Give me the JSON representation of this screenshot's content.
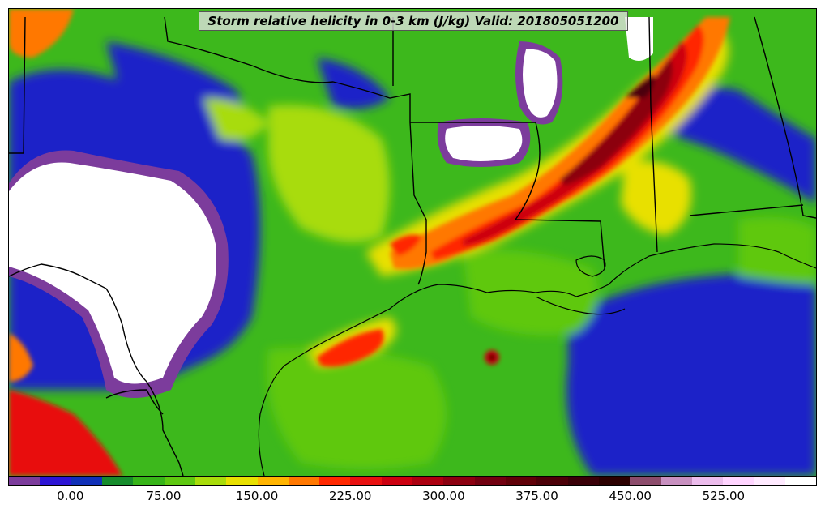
{
  "title": "Storm relative helicity in 0-3 km (J/kg) Valid: 201805051200",
  "colorbar": {
    "colors": [
      "#7c3c9c",
      "#2c14d4",
      "#1030b8",
      "#168c2c",
      "#36b418",
      "#5ec810",
      "#a8dc0a",
      "#e8e000",
      "#ffb400",
      "#ff7800",
      "#ff2800",
      "#e81010",
      "#cc0010",
      "#ac0010",
      "#8c0010",
      "#720010",
      "#600008",
      "#4c0008",
      "#3a0008",
      "#2c0000",
      "#8c4c6c",
      "#c890c0",
      "#ecbcec",
      "#ffd4ff",
      "#ffeaff"
    ],
    "tick_labels": [
      "0.00",
      "75.00",
      "150.00",
      "225.00",
      "300.00",
      "375.00",
      "450.00",
      "525.00"
    ],
    "tick_values": [
      0,
      75,
      150,
      225,
      300,
      375,
      450,
      525
    ],
    "min": -50,
    "max": 575,
    "over_color": "#ffffff"
  },
  "map": {
    "background_color": "#3db81c",
    "missing_color": "#ffffff",
    "boundary_color": "#000000"
  }
}
